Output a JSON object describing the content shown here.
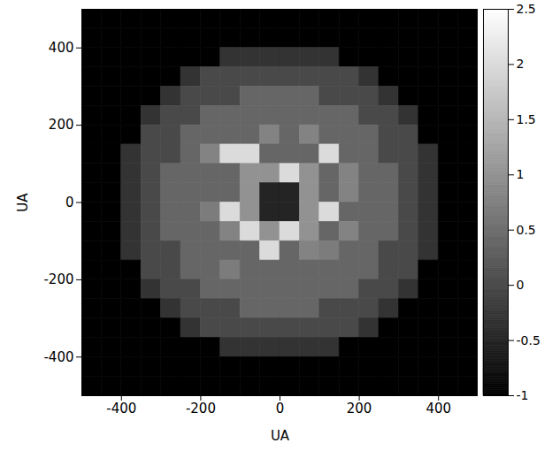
{
  "chart_data": {
    "type": "heatmap",
    "xlabel": "UA",
    "ylabel": "UA",
    "xlim": [
      -500,
      500
    ],
    "ylim": [
      -500,
      500
    ],
    "xticks": [
      -400,
      -200,
      0,
      200,
      400
    ],
    "yticks": [
      -400,
      -200,
      0,
      200,
      400
    ],
    "x": [
      -475,
      -425,
      -375,
      -325,
      -275,
      -225,
      -175,
      -125,
      -75,
      -25,
      25,
      75,
      125,
      175,
      225,
      275,
      325,
      375,
      425,
      475
    ],
    "y": [
      475,
      425,
      375,
      325,
      275,
      225,
      175,
      125,
      75,
      25,
      -25,
      -75,
      -125,
      -175,
      -225,
      -275,
      -325,
      -375,
      -425,
      -475
    ],
    "values": [
      [
        -1,
        -1,
        -1,
        -1,
        -1,
        -1,
        -1,
        -1,
        -1,
        -1,
        -1,
        -1,
        -1,
        -1,
        -1,
        -1,
        -1,
        -1,
        -1,
        -1
      ],
      [
        -1,
        -1,
        -1,
        -1,
        -1,
        -1,
        -1,
        -1,
        -1,
        -1,
        -1,
        -1,
        -1,
        -1,
        -1,
        -1,
        -1,
        -1,
        -1,
        -1
      ],
      [
        -1,
        -1,
        -1,
        -1,
        -1,
        -1,
        -1,
        -0.3,
        -0.3,
        -0.3,
        -0.3,
        -0.3,
        -0.3,
        -1,
        -1,
        -1,
        -1,
        -1,
        -1,
        -1
      ],
      [
        -1,
        -1,
        -1,
        -1,
        -1,
        -0.3,
        0,
        0,
        0,
        0,
        0,
        0,
        0,
        0,
        -0.3,
        -1,
        -1,
        -1,
        -1,
        -1
      ],
      [
        -1,
        -1,
        -1,
        -1,
        -0.3,
        0,
        0,
        0,
        0.4,
        0.4,
        0.4,
        0.4,
        0,
        0,
        0,
        -0.3,
        -1,
        -1,
        -1,
        -1
      ],
      [
        -1,
        -1,
        -1,
        -0.3,
        0,
        0,
        0.4,
        0.4,
        0.4,
        0.4,
        0.4,
        0.4,
        0.4,
        0.4,
        0,
        0,
        -0.3,
        -1,
        -1,
        -1
      ],
      [
        -1,
        -1,
        -1,
        0,
        0,
        0.4,
        0.4,
        0.4,
        0.4,
        0.8,
        0.4,
        0.8,
        0.4,
        0.4,
        0.4,
        0,
        0,
        -1,
        -1,
        -1
      ],
      [
        -1,
        -1,
        -0.3,
        0,
        0,
        0.4,
        0.8,
        2,
        2,
        0.4,
        0.4,
        0.4,
        2,
        0.4,
        0.4,
        0,
        0,
        -0.3,
        -1,
        -1
      ],
      [
        -1,
        -1,
        -0.3,
        0,
        0.4,
        0.4,
        0.4,
        0.4,
        1,
        1,
        2,
        1,
        0.4,
        0.8,
        0.4,
        0.4,
        0,
        -0.3,
        -1,
        -1
      ],
      [
        -1,
        -1,
        -0.3,
        0,
        0.4,
        0.4,
        0.4,
        0.4,
        1,
        -0.5,
        -0.5,
        1,
        0.4,
        0.8,
        0.4,
        0.4,
        0,
        -0.3,
        -1,
        -1
      ],
      [
        -1,
        -1,
        -0.3,
        0,
        0.4,
        0.4,
        0.7,
        2,
        1,
        -0.5,
        -0.5,
        1,
        2,
        0.4,
        0.4,
        0.4,
        0,
        -0.3,
        -1,
        -1
      ],
      [
        -1,
        -1,
        -0.3,
        0,
        0.4,
        0.4,
        0.4,
        0.8,
        2,
        1,
        2,
        1,
        0.4,
        0.8,
        0.4,
        0.4,
        0,
        -0.3,
        -1,
        -1
      ],
      [
        -1,
        -1,
        -0.3,
        0,
        0,
        0.4,
        0.4,
        0.4,
        0.4,
        2,
        0.4,
        0.8,
        0.7,
        0.4,
        0.4,
        0,
        0,
        -0.3,
        -1,
        -1
      ],
      [
        -1,
        -1,
        -1,
        0,
        0,
        0.4,
        0.4,
        0.7,
        0.4,
        0.4,
        0.4,
        0.4,
        0.4,
        0.4,
        0.4,
        0,
        0,
        -1,
        -1,
        -1
      ],
      [
        -1,
        -1,
        -1,
        -0.3,
        0,
        0,
        0.4,
        0.4,
        0.4,
        0.4,
        0.4,
        0.4,
        0.4,
        0.4,
        0,
        0,
        -0.3,
        -1,
        -1,
        -1
      ],
      [
        -1,
        -1,
        -1,
        -1,
        -0.3,
        0,
        0,
        0,
        0.4,
        0.4,
        0.4,
        0.4,
        0,
        0,
        0,
        -0.3,
        -1,
        -1,
        -1,
        -1
      ],
      [
        -1,
        -1,
        -1,
        -1,
        -1,
        -0.3,
        0,
        0,
        0,
        0,
        0,
        0,
        0,
        0,
        -0.3,
        -1,
        -1,
        -1,
        -1,
        -1
      ],
      [
        -1,
        -1,
        -1,
        -1,
        -1,
        -1,
        -1,
        -0.3,
        -0.3,
        -0.3,
        -0.3,
        -0.3,
        -0.3,
        -1,
        -1,
        -1,
        -1,
        -1,
        -1,
        -1
      ],
      [
        -1,
        -1,
        -1,
        -1,
        -1,
        -1,
        -1,
        -1,
        -1,
        -1,
        -1,
        -1,
        -1,
        -1,
        -1,
        -1,
        -1,
        -1,
        -1,
        -1
      ],
      [
        -1,
        -1,
        -1,
        -1,
        -1,
        -1,
        -1,
        -1,
        -1,
        -1,
        -1,
        -1,
        -1,
        -1,
        -1,
        -1,
        -1,
        -1,
        -1,
        -1
      ]
    ],
    "colorbar": {
      "range": [
        -1,
        2.5
      ],
      "ticks": [
        -1,
        -0.5,
        0,
        0.5,
        1,
        1.5,
        2,
        2.5
      ]
    }
  }
}
